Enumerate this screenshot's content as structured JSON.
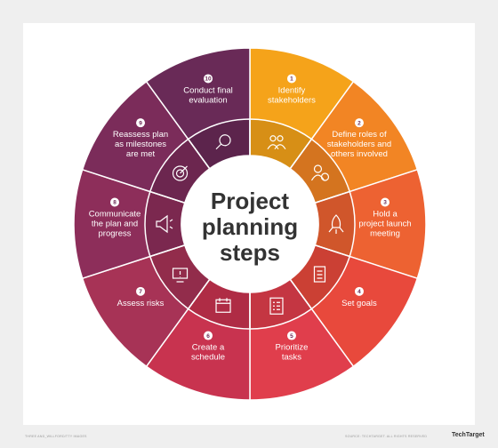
{
  "title_lines": [
    "Project",
    "planning",
    "steps"
  ],
  "colors": {
    "background": "#efefef",
    "card": "#ffffff",
    "center_text": "#333333"
  },
  "steps": [
    {
      "number": "1",
      "label_lines": [
        "Identify",
        "stakeholders"
      ],
      "color": "#f5a31a",
      "icon": "people-icon"
    },
    {
      "number": "2",
      "label_lines": [
        "Define roles of",
        "stakeholders and",
        "others involved"
      ],
      "color": "#f28524",
      "icon": "person-check-icon"
    },
    {
      "number": "3",
      "label_lines": [
        "Hold a",
        "project launch",
        "meeting"
      ],
      "color": "#ed6232",
      "icon": "rocket-icon"
    },
    {
      "number": "4",
      "label_lines": [
        "Set goals"
      ],
      "color": "#e8493c",
      "icon": "checklist-doc-icon"
    },
    {
      "number": "5",
      "label_lines": [
        "Prioritize",
        "tasks"
      ],
      "color": "#e03e4c",
      "icon": "priority-list-icon"
    },
    {
      "number": "6",
      "label_lines": [
        "Create a",
        "schedule"
      ],
      "color": "#c8334f",
      "icon": "calendar-icon"
    },
    {
      "number": "7",
      "label_lines": [
        "Assess risks"
      ],
      "color": "#a73356",
      "icon": "warning-monitor-icon"
    },
    {
      "number": "8",
      "label_lines": [
        "Communicate",
        "the plan and",
        "progress"
      ],
      "color": "#8d2e5a",
      "icon": "megaphone-icon"
    },
    {
      "number": "9",
      "label_lines": [
        "Reassess plan",
        "as milestones",
        "are met"
      ],
      "color": "#7b2c5a",
      "icon": "target-icon"
    },
    {
      "number": "10",
      "label_lines": [
        "Conduct final",
        "evaluation"
      ],
      "color": "#692a57",
      "icon": "magnifier-icon"
    }
  ],
  "footer": {
    "left": "THREE AND_WILLFORD/TTY IMAGES",
    "right": "SOURCE: TECHTARGET. ALL RIGHTS RESERVED",
    "brand": "TechTarget"
  }
}
